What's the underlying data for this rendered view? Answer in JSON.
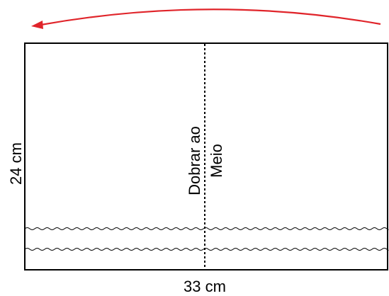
{
  "diagram": {
    "fold_label": {
      "line1": "Dobrar ao",
      "line2": "Meio"
    },
    "dimensions": {
      "height_label": "24 cm",
      "width_label": "33 cm"
    },
    "colors": {
      "arrow": "#e0242a",
      "outline": "#000000",
      "background": "#ffffff"
    },
    "stitch_lines": {
      "count": 2,
      "style": "wavy"
    },
    "fold_line": {
      "style": "dotted"
    },
    "arrow": {
      "direction": "right-to-left",
      "shape": "curved"
    }
  }
}
